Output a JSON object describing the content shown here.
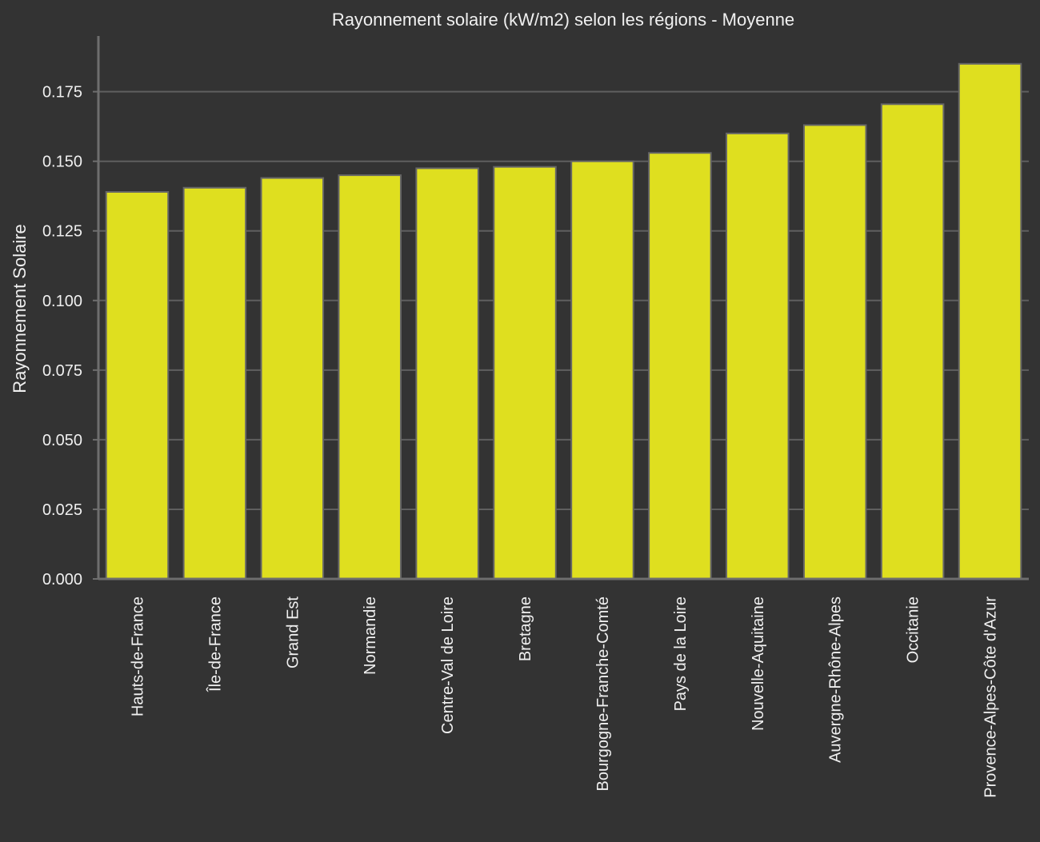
{
  "colors": {
    "background": "#333333",
    "bar_fill": "#dfdf1f",
    "bar_edge": "#666666",
    "grid": "#5f5f5f",
    "axis": "#6e6e6e",
    "text": "#f0f0f0"
  },
  "chart_data": {
    "type": "bar",
    "title": "Rayonnement solaire (kW/m2) selon les régions - Moyenne",
    "xlabel": "",
    "ylabel": "Rayonnement Solaire",
    "categories": [
      "Hauts-de-France",
      "Île-de-France",
      "Grand Est",
      "Normandie",
      "Centre-Val de Loire",
      "Bretagne",
      "Bourgogne-Franche-Comté",
      "Pays de la Loire",
      "Nouvelle-Aquitaine",
      "Auvergne-Rhône-Alpes",
      "Occitanie",
      "Provence-Alpes-Côte d'Azur"
    ],
    "values": [
      0.139,
      0.1405,
      0.144,
      0.145,
      0.1475,
      0.148,
      0.15,
      0.153,
      0.16,
      0.163,
      0.1705,
      0.185
    ],
    "ylim": [
      0,
      0.195
    ],
    "yticks": [
      0.0,
      0.025,
      0.05,
      0.075,
      0.1,
      0.125,
      0.15,
      0.175
    ],
    "ytick_labels": [
      "0.000",
      "0.025",
      "0.050",
      "0.075",
      "0.100",
      "0.125",
      "0.150",
      "0.175"
    ],
    "grid": "horizontal",
    "legend": "none"
  }
}
